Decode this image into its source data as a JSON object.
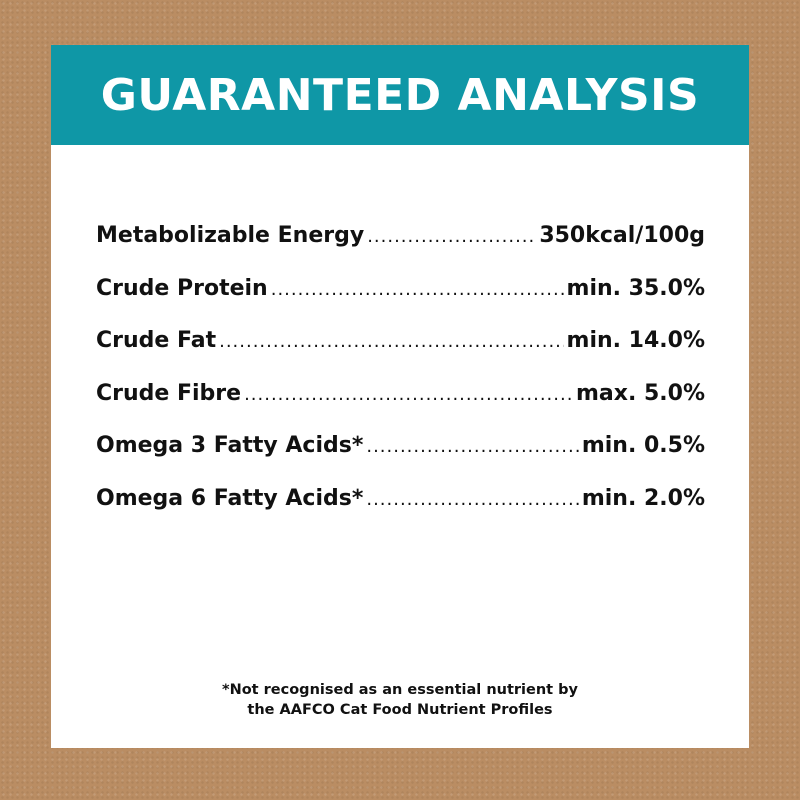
{
  "title": "GUARANTEED ANALYSIS",
  "colors": {
    "header": "#0f97a6",
    "background": "#ba8d63"
  },
  "rows": [
    {
      "label": "Metabolizable Energy",
      "value": "350kcal/100g"
    },
    {
      "label": "Crude Protein",
      "value": "min. 35.0%"
    },
    {
      "label": "Crude Fat",
      "value": "min. 14.0%"
    },
    {
      "label": "Crude Fibre",
      "value": "max. 5.0%"
    },
    {
      "label": "Omega 3 Fatty Acids*",
      "value": "min. 0.5%"
    },
    {
      "label": "Omega 6 Fatty Acids*",
      "value": "min. 2.0%"
    }
  ],
  "footnote": {
    "line1": "*Not recognised as an essential nutrient by",
    "line2": "the AAFCO Cat Food Nutrient Profiles"
  }
}
